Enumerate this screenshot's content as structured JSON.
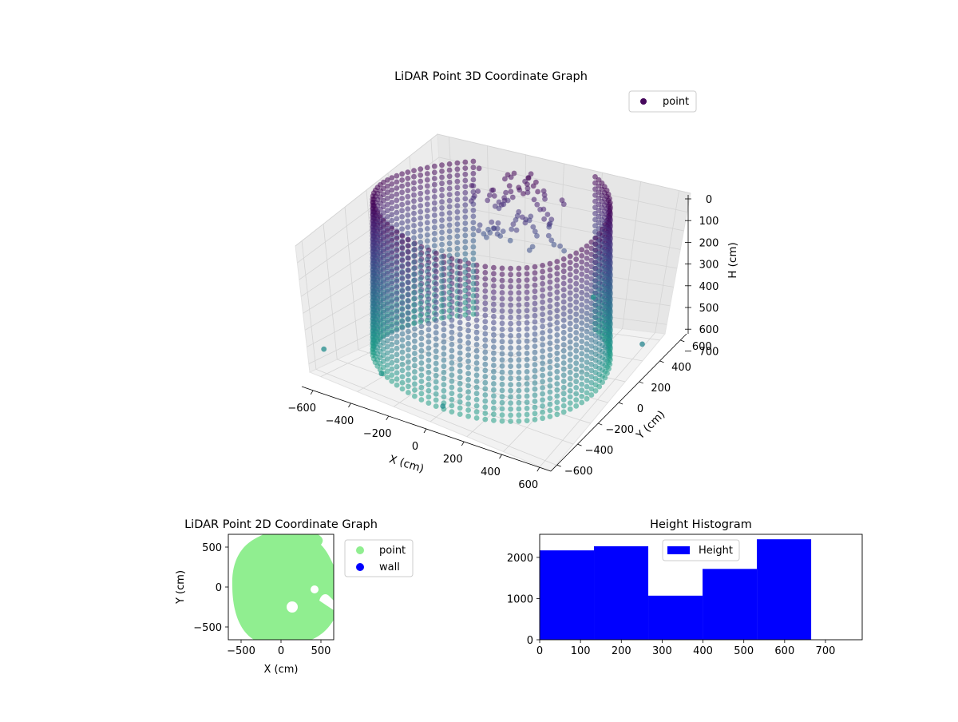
{
  "chart_data": [
    {
      "type": "scatter",
      "title": "LiDAR Point 3D Coordinate Graph",
      "xlabel": "X (cm)",
      "ylabel": "Y (cm)",
      "zlabel": "H (cm)",
      "xticks": [
        -600,
        -400,
        -200,
        0,
        200,
        400,
        600
      ],
      "yticks": [
        -600,
        -400,
        -200,
        0,
        200,
        400,
        600
      ],
      "zticks": [
        0,
        100,
        200,
        300,
        400,
        500,
        600,
        700
      ],
      "xlim": [
        -660,
        660
      ],
      "ylim": [
        -660,
        660
      ],
      "zlim": [
        0,
        750
      ],
      "z_axis_inverted": true,
      "colormap": "viridis",
      "grid": true,
      "legend": {
        "placement": "top-right",
        "entries": [
          {
            "label": "point",
            "color": "#46085c"
          }
        ]
      },
      "shape": "cylindrical wall of points, radius about 600 cm, heights 0–750 cm, open toward +X/-Y, with an object cluster near the +Y side at heights 0–300 cm"
    },
    {
      "type": "scatter",
      "title": "LiDAR Point 2D Coordinate Graph",
      "xlabel": "X (cm)",
      "ylabel": "Y (cm)",
      "xticks": [
        -500,
        0,
        500
      ],
      "yticks": [
        -500,
        0,
        500
      ],
      "xlim": [
        -660,
        660
      ],
      "ylim": [
        -660,
        660
      ],
      "legend": {
        "placement": "outside-right",
        "entries": [
          {
            "label": "point",
            "color": "#90ee90"
          },
          {
            "label": "wall",
            "color": "#0000ff"
          }
        ]
      }
    },
    {
      "type": "bar",
      "title": "Height Histogram",
      "bin_edges": [
        0,
        133,
        266,
        399,
        532,
        665
      ],
      "values": [
        2170,
        2270,
        1070,
        1720,
        2440
      ],
      "xticks": [
        0,
        100,
        200,
        300,
        400,
        500,
        600,
        700
      ],
      "yticks": [
        0,
        1000,
        2000
      ],
      "xlim": [
        0,
        790
      ],
      "ylim": [
        0,
        2560
      ],
      "color": "#0000ff",
      "legend": {
        "placement": "top-center",
        "entries": [
          {
            "label": "Height",
            "color": "#0000ff"
          }
        ]
      }
    }
  ]
}
